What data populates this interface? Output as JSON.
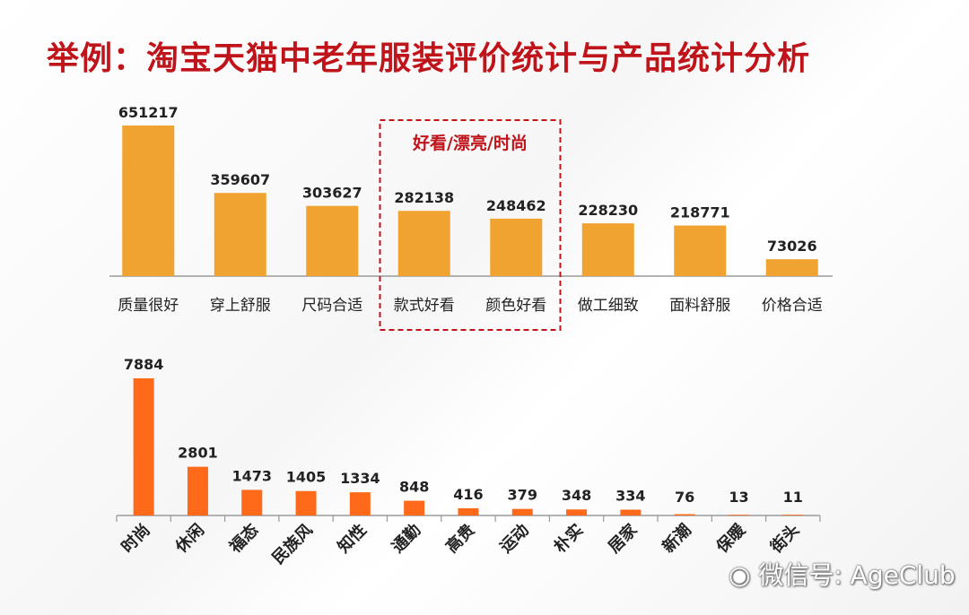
{
  "title": "举例：淘宝天猫中老年服装评价统计与产品统计分析",
  "watermark": "微信号: AgeClub",
  "colors": {
    "title": "#c0141b",
    "bar_top": "#f0a330",
    "bar_bottom": "#ff6a1a",
    "highlight": "#c0141b"
  },
  "chart_data": [
    {
      "type": "bar",
      "title": "",
      "xlabel": "",
      "ylabel": "",
      "categories": [
        "质量很好",
        "穿上舒服",
        "尺码合适",
        "款式好看",
        "颜色好看",
        "做工细致",
        "面料舒服",
        "价格合适"
      ],
      "values": [
        651217,
        359607,
        303627,
        282138,
        248462,
        228230,
        218771,
        73026
      ],
      "ylim": [
        0,
        651217
      ],
      "grid": false,
      "legend": "none",
      "highlight": {
        "label": "好看/漂亮/时尚",
        "categories": [
          "款式好看",
          "颜色好看"
        ]
      }
    },
    {
      "type": "bar",
      "title": "",
      "xlabel": "",
      "ylabel": "",
      "categories": [
        "时尚",
        "休闲",
        "福态",
        "民族风",
        "知性",
        "通勤",
        "高贵",
        "运动",
        "朴实",
        "居家",
        "新潮",
        "保暖",
        "街头"
      ],
      "values": [
        7884,
        2801,
        1473,
        1405,
        1334,
        848,
        416,
        379,
        348,
        334,
        76,
        13,
        11
      ],
      "ylim": [
        0,
        7884
      ],
      "grid": false,
      "legend": "none"
    }
  ]
}
